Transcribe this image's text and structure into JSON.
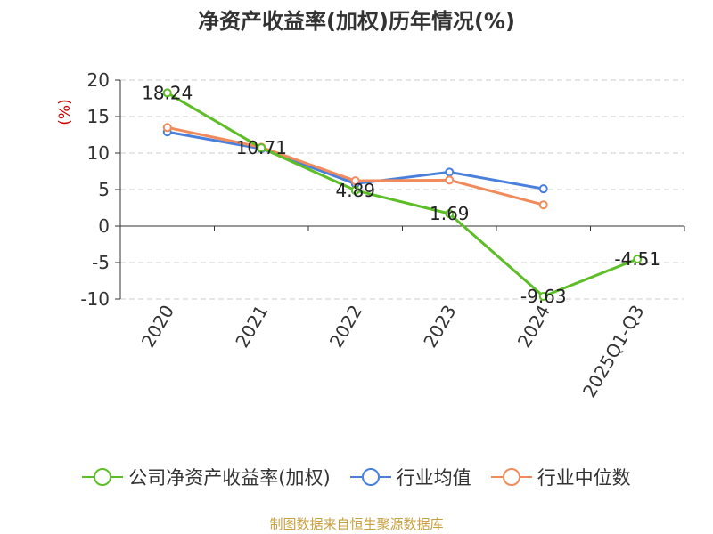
{
  "title": "净资产收益率(加权)历年情况(%)",
  "source_note": "制图数据来自恒生聚源数据库",
  "chart_data": {
    "type": "line",
    "categories": [
      "2020",
      "2021",
      "2022",
      "2023",
      "2024",
      "2025Q1-Q3"
    ],
    "ylabel": "(%)",
    "ylim": [
      -10,
      20
    ],
    "yticks": [
      20,
      15,
      10,
      5,
      0,
      -5,
      -10
    ],
    "grid": true,
    "legend_position": "bottom",
    "series": [
      {
        "name": "公司净资产收益率(加权)",
        "color": "#5dbe27",
        "values": [
          18.24,
          10.71,
          4.89,
          1.69,
          -9.63,
          -4.51
        ],
        "labels": [
          "18.24",
          "10.71",
          "4.89",
          "1.69",
          "-9.63",
          "-4.51"
        ]
      },
      {
        "name": "行业均值",
        "color": "#4a7fdc",
        "values": [
          12.9,
          10.6,
          5.8,
          7.4,
          5.1,
          null
        ]
      },
      {
        "name": "行业中位数",
        "color": "#f28b5c",
        "values": [
          13.5,
          10.8,
          6.2,
          6.3,
          2.9,
          null
        ]
      }
    ]
  }
}
